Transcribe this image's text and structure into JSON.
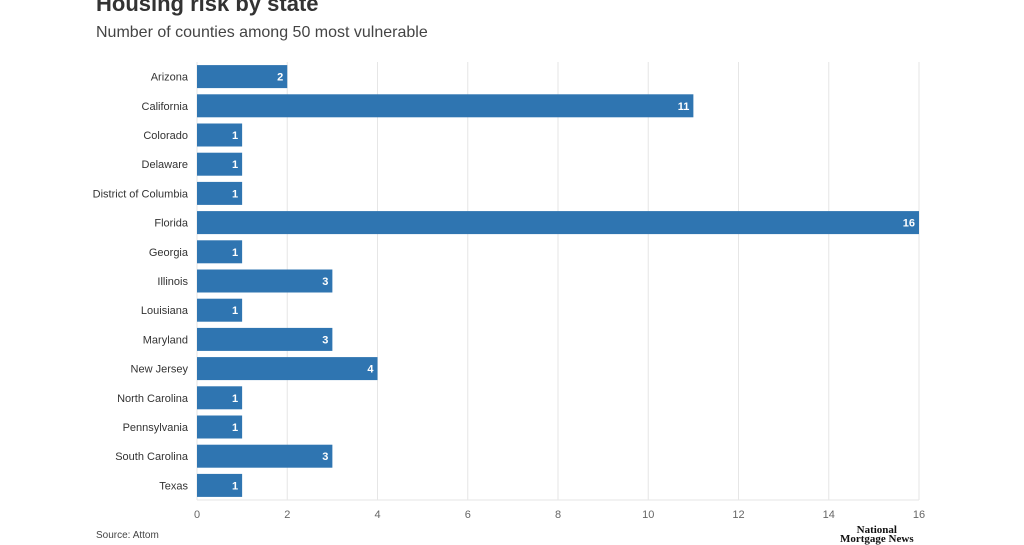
{
  "chart_data": {
    "type": "bar",
    "orientation": "horizontal",
    "title": "Housing risk by state",
    "subtitle": "Number of counties among 50 most vulnerable",
    "categories": [
      "Arizona",
      "California",
      "Colorado",
      "Delaware",
      "District of Columbia",
      "Florida",
      "Georgia",
      "Illinois",
      "Louisiana",
      "Maryland",
      "New Jersey",
      "North Carolina",
      "Pennsylvania",
      "South Carolina",
      "Texas"
    ],
    "values": [
      2,
      11,
      1,
      1,
      1,
      16,
      1,
      3,
      1,
      3,
      4,
      1,
      1,
      3,
      1
    ],
    "xlim": [
      0,
      16
    ],
    "xticks": [
      0,
      2,
      4,
      6,
      8,
      10,
      12,
      14,
      16
    ],
    "grid": true,
    "bar_color": "#2f75b1",
    "source": "Source: Attom"
  },
  "logo": {
    "text": "National Mortgage News"
  }
}
